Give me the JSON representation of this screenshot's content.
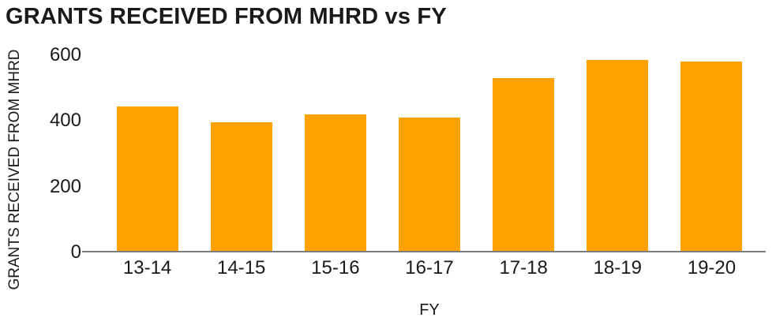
{
  "chart_data": {
    "type": "bar",
    "title": "GRANTS RECEIVED FROM MHRD vs FY",
    "xlabel": "FY",
    "ylabel": "GRANTS RECEIVED FROM MHRD",
    "categories": [
      "13-14",
      "14-15",
      "15-16",
      "16-17",
      "17-18",
      "18-19",
      "19-20"
    ],
    "values": [
      445,
      395,
      420,
      410,
      530,
      585,
      580
    ],
    "yticks": [
      0,
      200,
      400,
      600
    ],
    "ylim": [
      0,
      600
    ],
    "grid": false,
    "legend": false,
    "bar_color": "#FFA200",
    "axis_color": "#7D7D7D",
    "text_color": "#1A1A1A"
  }
}
